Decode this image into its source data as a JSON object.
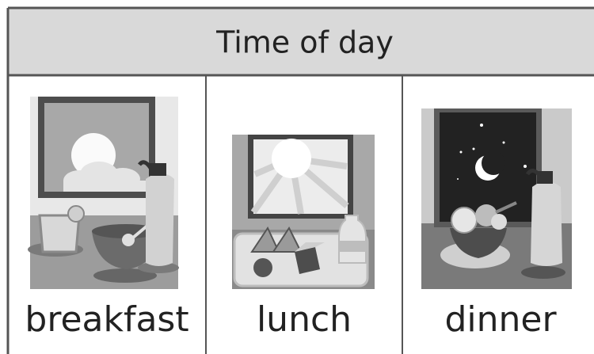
{
  "header": {
    "title": "Time of day"
  },
  "columns": [
    {
      "label": "breakfast"
    },
    {
      "label": "lunch"
    },
    {
      "label": "dinner"
    }
  ]
}
